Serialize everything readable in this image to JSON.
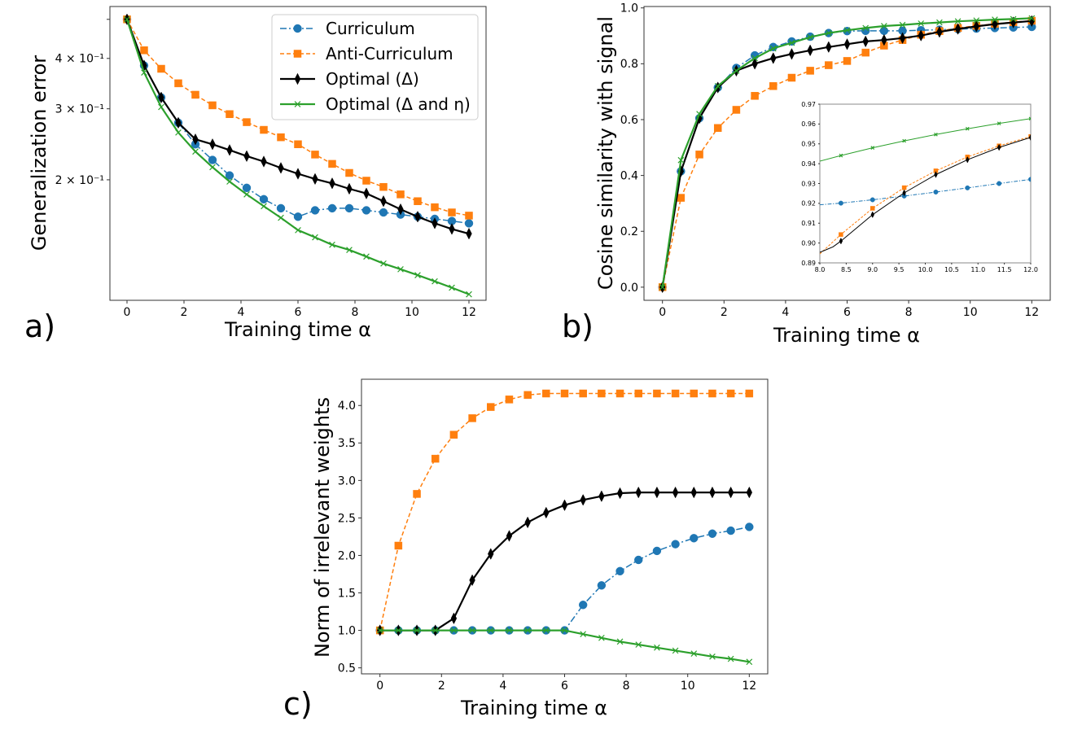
{
  "figure": {
    "panels": [
      "a)",
      "b)",
      "c)"
    ]
  },
  "legend": {
    "entries": [
      {
        "label": "Curriculum",
        "color": "#1f77b4",
        "linestyle": "dashdot",
        "marker": "circle"
      },
      {
        "label": "Anti-Curriculum",
        "color": "#ff7f0e",
        "linestyle": "dashed",
        "marker": "square"
      },
      {
        "label": "Optimal (Δ)",
        "color": "#000000",
        "linestyle": "solid",
        "marker": "thin-diamond"
      },
      {
        "label": "Optimal (Δ and η)",
        "color": "#2ca02c",
        "linestyle": "solid",
        "marker": "x"
      }
    ],
    "placement": "top-right of panel a"
  },
  "chart_data": [
    {
      "id": "a",
      "panel_label": "a)",
      "type": "line",
      "title": "",
      "xlabel": "Training time α",
      "ylabel": "Generalization error",
      "yscale": "log",
      "xlim": [
        -0.6,
        12.6
      ],
      "ylim": [
        0.1005,
        0.538
      ],
      "xticks": [
        0,
        2,
        4,
        6,
        8,
        10,
        12
      ],
      "xtick_labels": [
        "0",
        "2",
        "4",
        "6",
        "8",
        "10",
        "12"
      ],
      "yticks": [
        0.2,
        0.3,
        0.4,
        0.5
      ],
      "ytick_labels": [
        "2 × 10⁻¹",
        "3 × 10⁻¹",
        "4 × 10⁻¹",
        ""
      ],
      "grid": false,
      "x": [
        0,
        0.6,
        1.2,
        1.8,
        2.4,
        3.0,
        3.6,
        4.2,
        4.8,
        5.4,
        6.0,
        6.6,
        7.2,
        7.8,
        8.4,
        9.0,
        9.6,
        10.2,
        10.8,
        11.4,
        12.0
      ],
      "series": [
        {
          "name": "Curriculum",
          "values": [
            0.5,
            0.384,
            0.32,
            0.277,
            0.245,
            0.224,
            0.205,
            0.191,
            0.179,
            0.17,
            0.162,
            0.168,
            0.17,
            0.17,
            0.168,
            0.166,
            0.164,
            0.162,
            0.16,
            0.158,
            0.156
          ]
        },
        {
          "name": "Anti-Curriculum",
          "values": [
            0.5,
            0.419,
            0.377,
            0.347,
            0.325,
            0.306,
            0.291,
            0.278,
            0.266,
            0.255,
            0.245,
            0.231,
            0.219,
            0.208,
            0.199,
            0.192,
            0.184,
            0.177,
            0.171,
            0.166,
            0.163
          ]
        },
        {
          "name": "Optimal (Δ)",
          "values": [
            0.5,
            0.384,
            0.32,
            0.277,
            0.252,
            0.245,
            0.237,
            0.229,
            0.222,
            0.214,
            0.207,
            0.201,
            0.196,
            0.19,
            0.185,
            0.177,
            0.169,
            0.162,
            0.156,
            0.151,
            0.147
          ]
        },
        {
          "name": "Optimal (Δ and η)",
          "values": [
            0.5,
            0.369,
            0.303,
            0.262,
            0.235,
            0.215,
            0.198,
            0.184,
            0.172,
            0.161,
            0.15,
            0.144,
            0.138,
            0.134,
            0.129,
            0.124,
            0.12,
            0.116,
            0.112,
            0.108,
            0.104
          ]
        }
      ]
    },
    {
      "id": "b",
      "panel_label": "b)",
      "type": "line",
      "title": "",
      "xlabel": "Training time α",
      "ylabel": "Cosine similarity with signal",
      "yscale": "linear",
      "xlim": [
        -0.6,
        12.6
      ],
      "ylim": [
        -0.047,
        1.005
      ],
      "xticks": [
        0,
        2,
        4,
        6,
        8,
        10,
        12
      ],
      "xtick_labels": [
        "0",
        "2",
        "4",
        "6",
        "8",
        "10",
        "12"
      ],
      "yticks": [
        0.0,
        0.2,
        0.4,
        0.6,
        0.8,
        1.0
      ],
      "ytick_labels": [
        "0.0",
        "0.2",
        "0.4",
        "0.6",
        "0.8",
        "1.0"
      ],
      "grid": false,
      "x": [
        0,
        0.6,
        1.2,
        1.8,
        2.4,
        3.0,
        3.6,
        4.2,
        4.8,
        5.4,
        6.0,
        6.6,
        7.2,
        7.8,
        8.4,
        9.0,
        9.6,
        10.2,
        10.8,
        11.4,
        12.0
      ],
      "series": [
        {
          "name": "Curriculum",
          "values": [
            0,
            0.415,
            0.605,
            0.715,
            0.785,
            0.83,
            0.86,
            0.88,
            0.897,
            0.91,
            0.917,
            0.918,
            0.918,
            0.918,
            0.92,
            0.922,
            0.924,
            0.926,
            0.928,
            0.93,
            0.932
          ]
        },
        {
          "name": "Anti-Curriculum",
          "values": [
            0,
            0.32,
            0.475,
            0.57,
            0.635,
            0.685,
            0.72,
            0.75,
            0.775,
            0.795,
            0.81,
            0.84,
            0.865,
            0.885,
            0.904,
            0.917,
            0.928,
            0.936,
            0.943,
            0.949,
            0.954
          ]
        },
        {
          "name": "Optimal (Δ)",
          "values": [
            0,
            0.415,
            0.605,
            0.715,
            0.775,
            0.8,
            0.82,
            0.835,
            0.848,
            0.86,
            0.87,
            0.88,
            0.885,
            0.892,
            0.901,
            0.914,
            0.925,
            0.934,
            0.942,
            0.948,
            0.953
          ]
        },
        {
          "name": "Optimal (Δ and η)",
          "values": [
            0,
            0.455,
            0.62,
            0.72,
            0.775,
            0.82,
            0.855,
            0.875,
            0.895,
            0.91,
            0.92,
            0.928,
            0.935,
            0.939,
            0.944,
            0.948,
            0.952,
            0.955,
            0.958,
            0.96,
            0.963
          ]
        }
      ],
      "inset": {
        "xlim": [
          8.0,
          12.0
        ],
        "ylim": [
          0.89,
          0.97
        ],
        "xticks": [
          8.0,
          8.5,
          9.0,
          9.5,
          10.0,
          10.5,
          11.0,
          11.5,
          12.0
        ],
        "xtick_labels": [
          "8.0",
          "8.5",
          "9.0",
          "9.5",
          "10.0",
          "10.5",
          "11.0",
          "11.5",
          "12.0"
        ],
        "yticks": [
          0.89,
          0.9,
          0.91,
          0.92,
          0.93,
          0.94,
          0.95,
          0.96,
          0.97
        ],
        "ytick_labels": [
          "0.89",
          "0.90",
          "0.91",
          "0.92",
          "0.93",
          "0.94",
          "0.95",
          "0.96",
          "0.97"
        ],
        "placement": "lower-right",
        "series": [
          {
            "name": "Curriculum",
            "x": [
              8.0,
              8.4,
              9.0,
              9.6,
              10.2,
              10.8,
              11.4,
              12.0
            ],
            "values": [
              0.9193,
              0.9201,
              0.9218,
              0.9237,
              0.9257,
              0.9278,
              0.93,
              0.9321
            ]
          },
          {
            "name": "Anti-Curriculum",
            "x": [
              8.0,
              8.4,
              9.0,
              9.6,
              10.2,
              10.8,
              11.4,
              12.0
            ],
            "values": [
              0.8945,
              0.9043,
              0.9175,
              0.9279,
              0.9364,
              0.9434,
              0.949,
              0.9537
            ]
          },
          {
            "name": "Optimal (Δ)",
            "x": [
              8.0,
              8.25,
              8.4,
              9.0,
              9.6,
              10.2,
              10.8,
              11.4,
              12.0
            ],
            "values": [
              0.8953,
              0.8981,
              0.901,
              0.9143,
              0.9253,
              0.9345,
              0.942,
              0.9482,
              0.9532
            ]
          },
          {
            "name": "Optimal (Δ and η)",
            "x": [
              8.0,
              8.4,
              9.0,
              9.6,
              10.2,
              10.8,
              11.4,
              12.0
            ],
            "values": [
              0.9413,
              0.9441,
              0.948,
              0.9515,
              0.9547,
              0.9576,
              0.9603,
              0.9627
            ]
          }
        ]
      }
    },
    {
      "id": "c",
      "panel_label": "c)",
      "type": "line",
      "title": "",
      "xlabel": "Training time α",
      "ylabel": "Norm of irrelevant weights",
      "yscale": "linear",
      "xlim": [
        -0.6,
        12.6
      ],
      "ylim": [
        0.42,
        4.35
      ],
      "xticks": [
        0,
        2,
        4,
        6,
        8,
        10,
        12
      ],
      "xtick_labels": [
        "0",
        "2",
        "4",
        "6",
        "8",
        "10",
        "12"
      ],
      "yticks": [
        0.5,
        1.0,
        1.5,
        2.0,
        2.5,
        3.0,
        3.5,
        4.0
      ],
      "ytick_labels": [
        "0.5",
        "1.0",
        "1.5",
        "2.0",
        "2.5",
        "3.0",
        "3.5",
        "4.0"
      ],
      "grid": false,
      "x": [
        0,
        0.6,
        1.2,
        1.8,
        2.4,
        3.0,
        3.6,
        4.2,
        4.8,
        5.4,
        6.0,
        6.6,
        7.2,
        7.8,
        8.4,
        9.0,
        9.6,
        10.2,
        10.8,
        11.4,
        12.0
      ],
      "series": [
        {
          "name": "Curriculum",
          "values": [
            1.0,
            1.0,
            1.0,
            1.0,
            1.0,
            1.0,
            1.0,
            1.0,
            1.0,
            1.0,
            1.0,
            1.34,
            1.6,
            1.79,
            1.94,
            2.06,
            2.15,
            2.23,
            2.29,
            2.33,
            2.38
          ]
        },
        {
          "name": "Anti-Curriculum",
          "values": [
            1.0,
            2.13,
            2.82,
            3.29,
            3.61,
            3.83,
            3.98,
            4.08,
            4.14,
            4.16,
            4.16,
            4.16,
            4.16,
            4.16,
            4.16,
            4.16,
            4.16,
            4.16,
            4.16,
            4.16,
            4.16
          ]
        },
        {
          "name": "Optimal (Δ)",
          "values": [
            1.0,
            1.0,
            1.0,
            1.0,
            1.16,
            1.67,
            2.02,
            2.26,
            2.44,
            2.57,
            2.67,
            2.74,
            2.79,
            2.83,
            2.84,
            2.84,
            2.84,
            2.84,
            2.84,
            2.84,
            2.84
          ]
        },
        {
          "name": "Optimal (Δ and η)",
          "values": [
            1.0,
            1.0,
            1.0,
            1.0,
            1.0,
            1.0,
            1.0,
            1.0,
            1.0,
            1.0,
            1.0,
            0.95,
            0.9,
            0.85,
            0.81,
            0.77,
            0.73,
            0.69,
            0.65,
            0.62,
            0.58
          ]
        }
      ]
    }
  ]
}
